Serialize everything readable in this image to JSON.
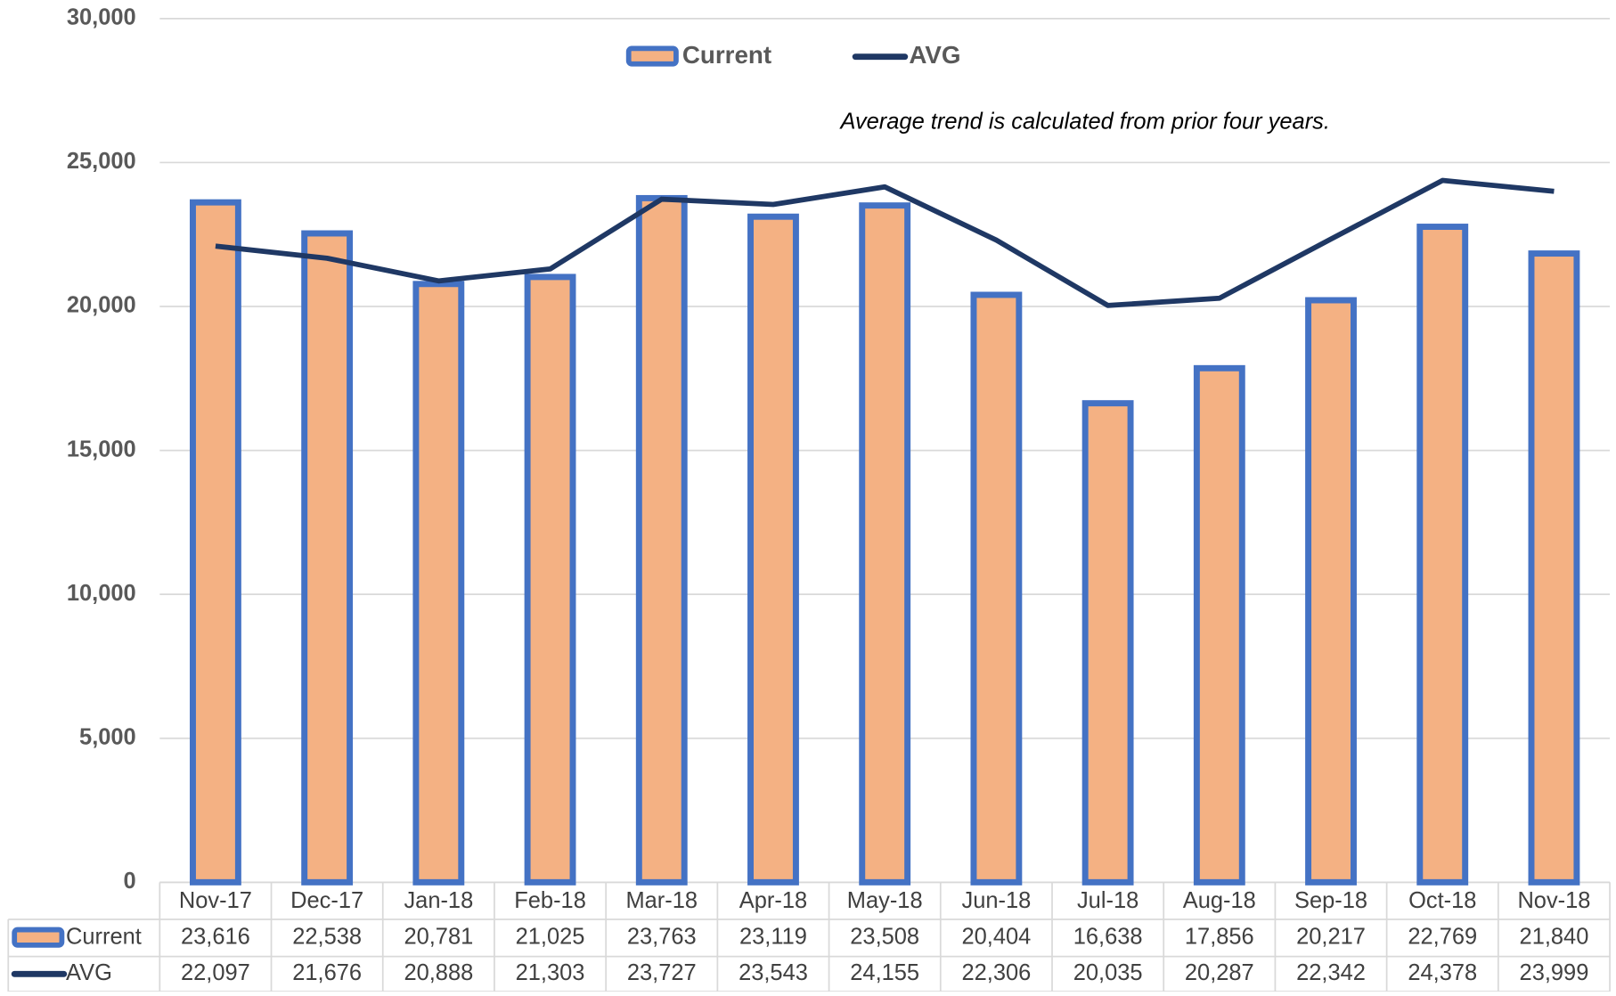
{
  "chart_data": {
    "type": "bar",
    "annotation": "Average trend is calculated from prior four years.",
    "categories": [
      "Nov-17",
      "Dec-17",
      "Jan-18",
      "Feb-18",
      "Mar-18",
      "Apr-18",
      "May-18",
      "Jun-18",
      "Jul-18",
      "Aug-18",
      "Sep-18",
      "Oct-18",
      "Nov-18"
    ],
    "series": [
      {
        "name": "Current",
        "type": "bar",
        "color": "#f4b183",
        "edge_color": "#4472c4",
        "values": [
          23616,
          22538,
          20781,
          21025,
          23763,
          23119,
          23508,
          20404,
          16638,
          17856,
          20217,
          22769,
          21840
        ],
        "value_labels": [
          "23,616",
          "22,538",
          "20,781",
          "21,025",
          "23,763",
          "23,119",
          "23,508",
          "20,404",
          "16,638",
          "17,856",
          "20,217",
          "22,769",
          "21,840"
        ]
      },
      {
        "name": "AVG",
        "type": "line",
        "color": "#1f3864",
        "values": [
          22097,
          21676,
          20888,
          21303,
          23727,
          23543,
          24155,
          22306,
          20035,
          20287,
          22342,
          24378,
          23999
        ],
        "value_labels": [
          "22,097",
          "21,676",
          "20,888",
          "21,303",
          "23,727",
          "23,543",
          "24,155",
          "22,306",
          "20,035",
          "20,287",
          "22,342",
          "24,378",
          "23,999"
        ]
      }
    ],
    "ylim": [
      0,
      30000
    ],
    "yticks": [
      0,
      {
        "value": 5000,
        "label": "5,000"
      },
      {
        "value": 10000,
        "label": "10,000"
      },
      {
        "value": 15000,
        "label": "15,000"
      },
      {
        "value": 20000,
        "label": "20,000"
      },
      {
        "value": 25000,
        "label": "25,000"
      },
      {
        "value": 30000,
        "label": "30,000"
      }
    ],
    "grid": true,
    "legend": "top"
  }
}
